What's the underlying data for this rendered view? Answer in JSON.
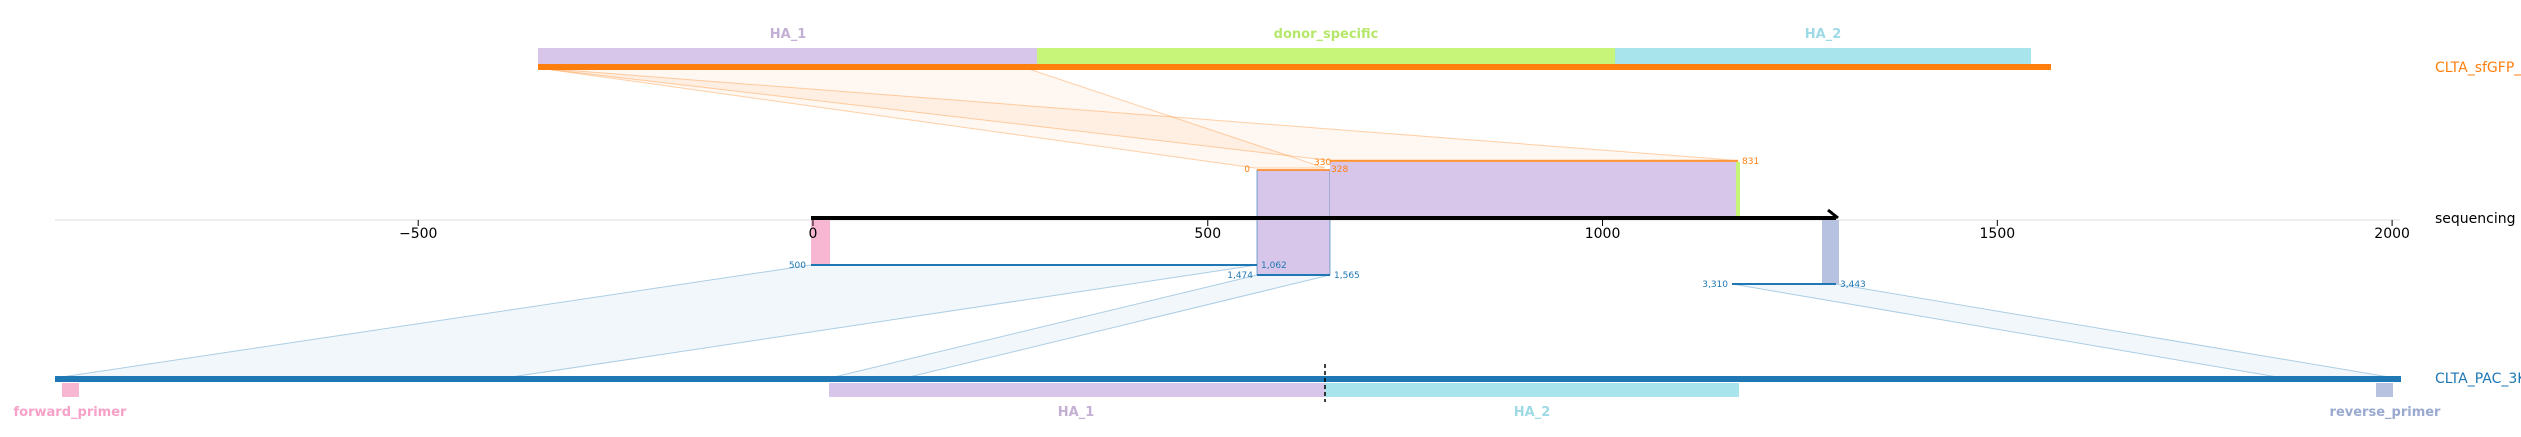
{
  "colors": {
    "donor": "#ff7f0e",
    "target": "#1f77b4",
    "read": "#000000",
    "ha1": "#d7c6ea",
    "ha2": "#a8e4ec",
    "donor_specific": "#c6f57a",
    "forward_primer": "#f7b6d2",
    "reverse_primer": "#b7c2e0",
    "ha1_label": "#c5b0d5",
    "ha2_label": "#9edae5",
    "donor_specific_label": "#b5e86a",
    "forward_primer_label": "#f7a1c8",
    "reverse_primer_label": "#9aa9d0"
  },
  "donor": {
    "name": "CLTA_sfGFP_ssDNA",
    "features": [
      {
        "label": "HA_1",
        "start": 0,
        "end": 330,
        "color_key": "ha1"
      },
      {
        "label": "donor_specific",
        "start": 330,
        "end": 714,
        "color_key": "donor_specific"
      },
      {
        "label": "HA_2",
        "start": 714,
        "end": 990,
        "color_key": "ha2"
      }
    ],
    "length": 1003
  },
  "read": {
    "name": "sequencing read",
    "axis_ticks": [
      "−500",
      "0",
      "500",
      "1000",
      "1500",
      "2000"
    ],
    "axis_tick_values": [
      -500,
      0,
      500,
      1000,
      1500,
      2000
    ],
    "xlim": [
      -960,
      2010
    ],
    "length": 1300
  },
  "target": {
    "name": "CLTA_PAC_3K",
    "features": [
      {
        "label": "forward_primer",
        "color_key": "forward_primer"
      },
      {
        "label": "HA_1",
        "color_key": "ha1"
      },
      {
        "label": "HA_2",
        "color_key": "ha2"
      },
      {
        "label": "reverse_primer",
        "color_key": "reverse_primer"
      }
    ]
  },
  "alignments": {
    "donor_labels": {
      "a": "0",
      "b": "330",
      "c": "831",
      "d": "328"
    },
    "target_labels": {
      "a": "500",
      "b": "1,062",
      "c": "1,474",
      "d": "1,565",
      "e": "3,310",
      "f": "3,443"
    }
  }
}
